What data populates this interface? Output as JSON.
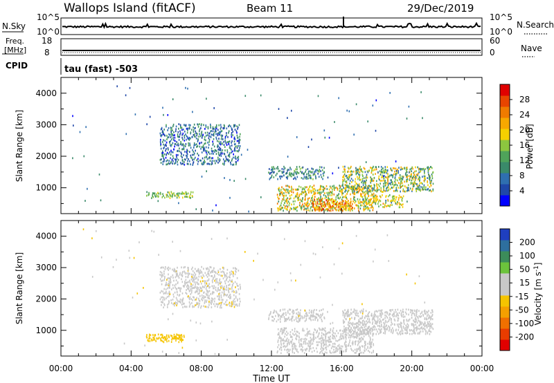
{
  "header": {
    "station": "Wallops Island (fitACF)",
    "beam": "Beam 11",
    "date": "29/Dec/2019"
  },
  "status_panel": {
    "left_labels": {
      "nsky": "N.Sky",
      "freq_line1": "Freq.",
      "freq_line2": "[MHz]",
      "cpid": "CPID"
    },
    "right_labels": {
      "nsearch": "N.Search",
      "nave": "Nave"
    },
    "nsky_ticks": [
      "10^5",
      "10^0"
    ],
    "nsearch_ticks": [
      "10^5",
      "10^0"
    ],
    "freq_ticks": [
      "18",
      "8"
    ],
    "nave_ticks": [
      "60",
      "0"
    ],
    "cpid_text": "tau (fast) -503"
  },
  "power_colorbar": {
    "label": "Power [dB]",
    "ticks": [
      "28",
      "24",
      "20",
      "16",
      "12",
      "8",
      "4"
    ],
    "colors": [
      "#0000ff",
      "#1f47a8",
      "#2f6fb0",
      "#3a8a6a",
      "#4fa35a",
      "#8cc63f",
      "#f5d000",
      "#f7a800",
      "#f07b00",
      "#e84500",
      "#e00000"
    ]
  },
  "velocity_colorbar": {
    "label": "Velocity [m s^-1]",
    "ticks": [
      "200",
      "100",
      "50",
      "15",
      "-15",
      "-50",
      "-100",
      "-200"
    ],
    "colors": [
      "#1f3fbf",
      "#2e6f9e",
      "#3c8c5a",
      "#6cc33c",
      "#c8c8c8",
      "#c8c8c8",
      "#f5c400",
      "#f5a000",
      "#f07000",
      "#e83c00",
      "#e00000"
    ]
  },
  "chart_data": [
    {
      "type": "heatmap",
      "title": "Power",
      "ylabel": "Slant Range [km]",
      "xlabel": "",
      "x_range_hours": [
        0,
        24
      ],
      "ylim": [
        180,
        4500
      ],
      "y_ticks": [
        1000,
        2000,
        3000,
        4000
      ],
      "x_tick_labels": [
        "00:00",
        "04:00",
        "08:00",
        "12:00",
        "16:00",
        "20:00",
        "00:00"
      ],
      "clusters": [
        {
          "t0": 5.6,
          "t1": 10.2,
          "r0": 1750,
          "r1": 3050,
          "density": 0.35,
          "vmin": 4,
          "vmax": 14
        },
        {
          "t0": 4.8,
          "t1": 7.5,
          "r0": 700,
          "r1": 900,
          "density": 0.45,
          "vmin": 12,
          "vmax": 20
        },
        {
          "t0": 11.8,
          "t1": 15.0,
          "r0": 1300,
          "r1": 1700,
          "density": 0.4,
          "vmin": 6,
          "vmax": 16
        },
        {
          "t0": 12.3,
          "t1": 17.8,
          "r0": 300,
          "r1": 1100,
          "density": 0.4,
          "vmin": 12,
          "vmax": 26
        },
        {
          "t0": 14.3,
          "t1": 16.6,
          "r0": 300,
          "r1": 650,
          "density": 0.55,
          "vmin": 18,
          "vmax": 30
        },
        {
          "t0": 16.0,
          "t1": 21.2,
          "r0": 900,
          "r1": 1700,
          "density": 0.45,
          "vmin": 8,
          "vmax": 24
        },
        {
          "t0": 17.2,
          "t1": 19.5,
          "r0": 400,
          "r1": 800,
          "density": 0.4,
          "vmin": 14,
          "vmax": 24
        },
        {
          "t0": 0.5,
          "t1": 21.0,
          "r0": 250,
          "r1": 4300,
          "density": 0.004,
          "vmin": 4,
          "vmax": 12
        }
      ]
    },
    {
      "type": "heatmap",
      "title": "Velocity",
      "ylabel": "Slant Range [km]",
      "xlabel": "Time UT",
      "x_range_hours": [
        0,
        24
      ],
      "ylim": [
        180,
        4500
      ],
      "y_ticks": [
        1000,
        2000,
        3000,
        4000
      ],
      "x_tick_labels": [
        "00:00",
        "04:00",
        "08:00",
        "12:00",
        "16:00",
        "20:00",
        "00:00"
      ],
      "clusters": [
        {
          "t0": 5.6,
          "t1": 10.2,
          "r0": 1750,
          "r1": 3050,
          "density": 0.35,
          "vmin": -30,
          "vmax": 60
        },
        {
          "t0": 4.8,
          "t1": 7.0,
          "r0": 650,
          "r1": 900,
          "density": 0.55,
          "vmin": -60,
          "vmax": -30
        },
        {
          "t0": 11.8,
          "t1": 15.0,
          "r0": 1300,
          "r1": 1700,
          "density": 0.4,
          "vmin": -10,
          "vmax": 40
        },
        {
          "t0": 12.3,
          "t1": 17.8,
          "r0": 300,
          "r1": 1100,
          "density": 0.4,
          "vmin": -14,
          "vmax": 14
        },
        {
          "t0": 16.0,
          "t1": 21.2,
          "r0": 900,
          "r1": 1700,
          "density": 0.45,
          "vmin": -14,
          "vmax": 20
        },
        {
          "t0": 0.5,
          "t1": 21.0,
          "r0": 250,
          "r1": 4300,
          "density": 0.004,
          "vmin": -40,
          "vmax": 40
        }
      ]
    }
  ]
}
